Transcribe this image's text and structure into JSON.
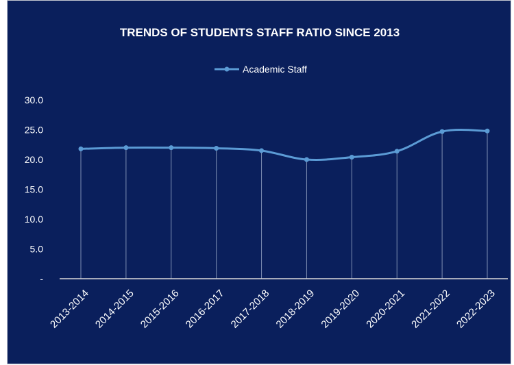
{
  "chart_data": {
    "type": "line",
    "title": "TRENDS OF STUDENTS STAFF RATIO SINCE 2013",
    "categories": [
      "2013-2014",
      "2014-2015",
      "2015-2016",
      "2016-2017",
      "2017-2018",
      "2018-2019",
      "2019-2020",
      "2020-2021",
      "2021-2022",
      "2022-2023"
    ],
    "series": [
      {
        "name": "Academic Staff",
        "values": [
          21.8,
          22.0,
          22.0,
          21.9,
          21.5,
          20.0,
          20.4,
          21.4,
          24.7,
          24.8
        ]
      }
    ],
    "y_ticks": [
      "-",
      "5.0",
      "10.0",
      "15.0",
      "20.0",
      "25.0",
      "30.0"
    ],
    "ylim": [
      0,
      30
    ],
    "legend_position": "top-center",
    "drop_lines": true,
    "colors": {
      "background": "#0a1f5c",
      "line": "#5b9bd5",
      "axis": "#d9d9d9",
      "text": "#ffffff"
    }
  }
}
